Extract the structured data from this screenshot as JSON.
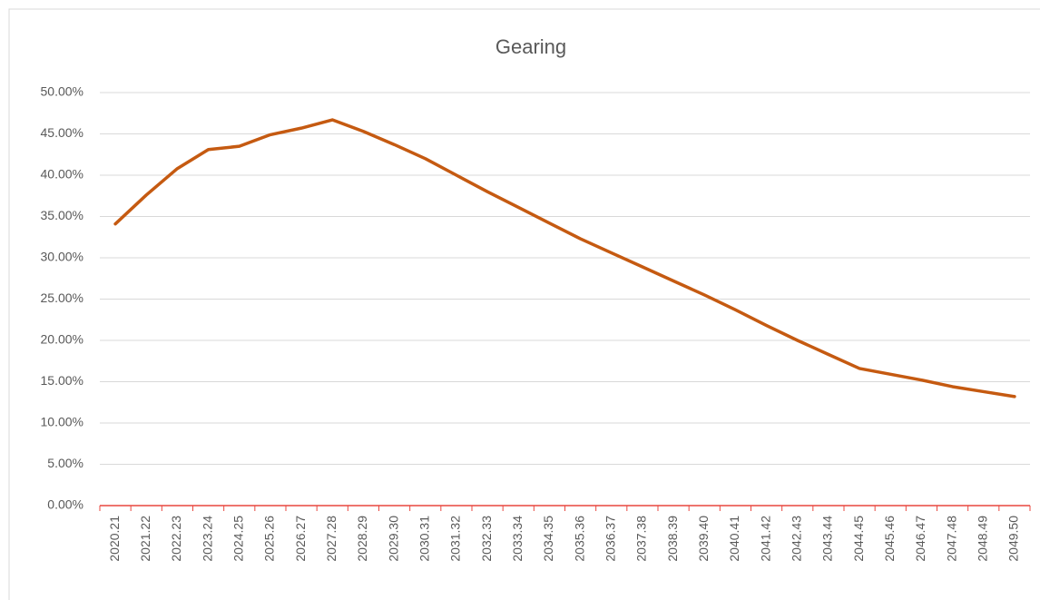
{
  "chart_data": {
    "type": "line",
    "title": "Gearing",
    "categories": [
      "2020.21",
      "2021.22",
      "2022.23",
      "2023.24",
      "2024.25",
      "2025.26",
      "2026.27",
      "2027.28",
      "2028.29",
      "2029.30",
      "2030.31",
      "2031.32",
      "2032.33",
      "2033.34",
      "2034.35",
      "2035.36",
      "2036.37",
      "2037.38",
      "2038.39",
      "2039.40",
      "2040.41",
      "2041.42",
      "2042.43",
      "2043.44",
      "2044.45",
      "2045.46",
      "2046.47",
      "2047.48",
      "2048.49",
      "2049.50"
    ],
    "series": [
      {
        "color": "#c55a11",
        "values": [
          34.1,
          37.6,
          40.8,
          43.1,
          43.5,
          44.9,
          45.7,
          46.7,
          45.3,
          43.7,
          42.0,
          40.0,
          38.0,
          36.1,
          34.2,
          32.3,
          30.6,
          28.9,
          27.2,
          25.5,
          23.7,
          21.8,
          20.0,
          18.3,
          16.6,
          15.9,
          15.2,
          14.4,
          13.8,
          13.2
        ]
      }
    ],
    "ylim": [
      0,
      50
    ],
    "yticks": [
      {
        "value": 0,
        "label": "0.00%"
      },
      {
        "value": 5,
        "label": "5.00%"
      },
      {
        "value": 10,
        "label": "10.00%"
      },
      {
        "value": 15,
        "label": "15.00%"
      },
      {
        "value": 20,
        "label": "20.00%"
      },
      {
        "value": 25,
        "label": "25.00%"
      },
      {
        "value": 30,
        "label": "30.00%"
      },
      {
        "value": 35,
        "label": "35.00%"
      },
      {
        "value": 40,
        "label": "40.00%"
      },
      {
        "value": 45,
        "label": "45.00%"
      },
      {
        "value": 50,
        "label": "50.00%"
      }
    ],
    "grid": true,
    "axis_color": "#e8473f"
  }
}
